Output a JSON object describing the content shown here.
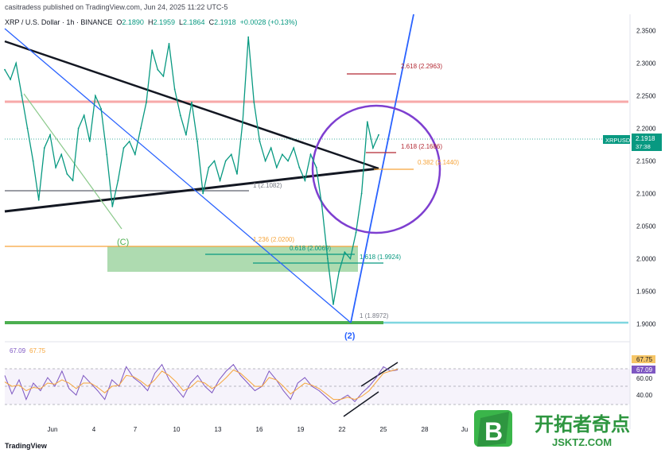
{
  "header": {
    "publish_line": "casitradess published on TradingView.com, Jun 24, 2025 11:22 UTC-5",
    "symbol": "XRP / U.S. Dollar · 1h · BINANCE",
    "open_label": "O",
    "open": "2.1890",
    "high_label": "H",
    "high": "2.1959",
    "low_label": "L",
    "low": "2.1864",
    "close_label": "C",
    "close": "2.1918",
    "change": "+0.0028 (+0.13%)"
  },
  "chart_data": [
    {
      "type": "line",
      "title": "XRP / U.S. Dollar · 1h · BINANCE",
      "x_ticks": [
        "Jun",
        "4",
        "7",
        "10",
        "13",
        "16",
        "19",
        "22",
        "25",
        "28",
        "Ju"
      ],
      "y_ticks": [
        "2.3500",
        "2.3000",
        "2.2500",
        "2.2000",
        "2.1500",
        "2.1000",
        "2.0500",
        "2.0000",
        "1.9500",
        "1.9000"
      ],
      "ylim": [
        1.875,
        2.375
      ],
      "grid": false,
      "price_label": {
        "symbol": "XRPUSD",
        "price": "2.1918",
        "countdown": "37:38"
      },
      "series": [
        {
          "values": [
            2.29,
            2.275,
            2.3,
            2.25,
            2.2,
            2.15,
            2.09,
            2.17,
            2.19,
            2.14,
            2.16,
            2.13,
            2.12,
            2.2,
            2.22,
            2.18,
            2.25,
            2.23,
            2.16,
            2.08,
            2.12,
            2.17,
            2.18,
            2.16,
            2.2,
            2.24,
            2.32,
            2.29,
            2.28,
            2.33,
            2.26,
            2.22,
            2.19,
            2.24,
            2.18,
            2.1,
            2.14,
            2.15,
            2.12,
            2.15,
            2.16,
            2.13,
            2.21,
            2.34,
            2.24,
            2.18,
            2.15,
            2.17,
            2.14,
            2.16,
            2.15,
            2.17,
            2.14,
            2.12,
            2.16,
            2.14,
            2.08,
            2.0,
            1.93,
            1.98,
            2.01,
            2.0,
            2.04,
            2.1,
            2.21,
            2.17,
            2.19
          ],
          "color": "#089981"
        }
      ],
      "annotations": [
        "2.618 (2.2963)",
        "1.618 (2.1686)",
        "0.382 (2.1440)",
        "1 (2.1082)",
        "1.236 (2.0200)",
        "0.618 (2.0069)",
        "1.618 (1.9924)",
        "1 (1.8972)",
        "(C)",
        "(2)"
      ],
      "colors": {
        "fib_upper": "#b22833",
        "fib_orange": "#f6a53b",
        "resistance": "#f7a9a9",
        "circle": "#7e3fd0",
        "trend_blue": "#2962ff",
        "zone": "#4caf50",
        "support": "#4caf50",
        "support_tail": "#7fd6e0"
      }
    },
    {
      "type": "line",
      "title": "",
      "y_ticks": [
        "67.75",
        "67.09",
        "60.00",
        "40.00"
      ],
      "ylim": [
        20,
        90
      ],
      "grid": false,
      "legend": [
        "67.09",
        "67.75"
      ],
      "series": [
        {
          "values": [
            62,
            45,
            58,
            40,
            55,
            48,
            60,
            52,
            66,
            50,
            44,
            62,
            55,
            48,
            40,
            58,
            52,
            70,
            60,
            55,
            48,
            64,
            72,
            58,
            50,
            42,
            55,
            62,
            52,
            46,
            58,
            66,
            72,
            62,
            55,
            48,
            52,
            66,
            58,
            48,
            40,
            55,
            60,
            52,
            48,
            42,
            36,
            40,
            44,
            38,
            46,
            52,
            60,
            70,
            66,
            67
          ],
          "color": "#7e57c2"
        },
        {
          "values": [
            56,
            52,
            53,
            48,
            51,
            50,
            55,
            54,
            58,
            55,
            50,
            55,
            55,
            51,
            46,
            52,
            53,
            62,
            61,
            57,
            52,
            58,
            66,
            62,
            56,
            48,
            51,
            57,
            55,
            50,
            54,
            60,
            67,
            64,
            58,
            52,
            52,
            60,
            58,
            52,
            45,
            50,
            55,
            53,
            50,
            45,
            40,
            40,
            42,
            40,
            43,
            48,
            56,
            64,
            66,
            67.75
          ],
          "color": "#f6a53b"
        }
      ]
    }
  ],
  "watermark": {
    "name": "开拓者奇点",
    "domain": "JSKTZ.COM",
    "badge": "B"
  },
  "footer": {
    "logo": "TradingView"
  }
}
